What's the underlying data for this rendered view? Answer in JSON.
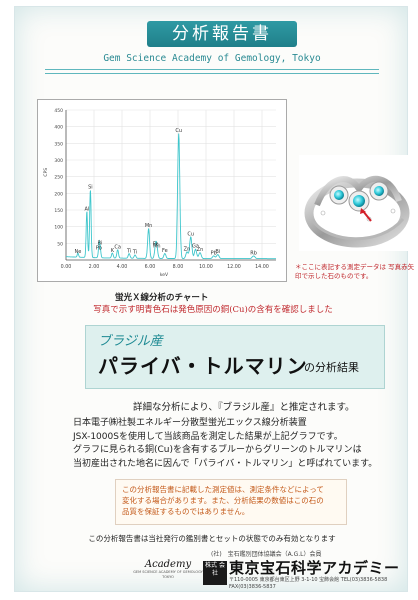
{
  "header": {
    "title": "分析報告書",
    "subtitle": "Gem Science Academy of Gemology, Tokyo"
  },
  "chart_data": {
    "type": "line",
    "title": "",
    "xlabel": "keV",
    "ylabel": "CPS",
    "xlim": [
      0,
      15
    ],
    "ylim": [
      0,
      450
    ],
    "x_ticks": [
      "0.00",
      "2.00",
      "4.00",
      "6.00",
      "8.00",
      "10.00",
      "12.00",
      "14.00"
    ],
    "y_ticks": [
      "50",
      "100",
      "150",
      "200",
      "250",
      "300",
      "350",
      "400",
      "450"
    ],
    "grid": true,
    "line_color": "#3ec6cc",
    "peaks": [
      {
        "label": "Ne",
        "x": 0.85,
        "y": 12
      },
      {
        "label": "Al",
        "x": 1.49,
        "y": 140
      },
      {
        "label": "Si",
        "x": 1.74,
        "y": 205
      },
      {
        "label": "Bi",
        "x": 2.42,
        "y": 38
      },
      {
        "label": "Pb",
        "x": 2.35,
        "y": 22
      },
      {
        "label": "K",
        "x": 3.31,
        "y": 15
      },
      {
        "label": "Ca",
        "x": 3.69,
        "y": 25
      },
      {
        "label": "Ti",
        "x": 4.51,
        "y": 14
      },
      {
        "label": "Ti",
        "x": 4.93,
        "y": 10
      },
      {
        "label": "Mn",
        "x": 5.9,
        "y": 90
      },
      {
        "label": "Fe",
        "x": 6.4,
        "y": 35
      },
      {
        "label": "Mn",
        "x": 6.49,
        "y": 28
      },
      {
        "label": "Fe",
        "x": 7.06,
        "y": 15
      },
      {
        "label": "Cu",
        "x": 8.05,
        "y": 375
      },
      {
        "label": "Cu",
        "x": 8.91,
        "y": 65
      },
      {
        "label": "Zn",
        "x": 8.64,
        "y": 20
      },
      {
        "label": "Zn",
        "x": 9.57,
        "y": 18
      },
      {
        "label": "Ga",
        "x": 9.25,
        "y": 28
      },
      {
        "label": "Bi",
        "x": 10.84,
        "y": 12
      },
      {
        "label": "Pb",
        "x": 10.55,
        "y": 8
      },
      {
        "label": "Rb",
        "x": 13.4,
        "y": 8
      }
    ],
    "peak_labels": [
      "Cu",
      "Si",
      "Al",
      "Mn",
      "Ga",
      "Zn",
      "Bi",
      "Pb",
      "Ne",
      "Ca",
      "K",
      "Ti",
      "Fe",
      "Rb"
    ]
  },
  "chart_caption": "蛍光Ｘ線分析のチャート",
  "photo_note": "＊ここに表記する測定データは 写真赤矢印で示した石のものです。",
  "red_note": "写真で示す明青色石は発色原因の銅(Cu)の含有を確認しました",
  "result": {
    "origin": "ブラジル産",
    "gem_name": "パライバ・トルマリン",
    "suffix": "の分析結果"
  },
  "estimate_text": "詳細な分析により、『ブラジル産』と推定されます。",
  "body_lines": [
    "日本電子㈱社製エネルギー分散型蛍光エックス線分析装置",
    "JSX-1000Sを使用して当該商品を測定した結果が上記グラフです。",
    "グラフに見られる銅(Cu)を含有するブルーからグリーンのトルマリンは",
    "当初産出された地名に因んで「パライバ・トルマリン」と呼ばれています。"
  ],
  "notice_lines": [
    "この分析報告書に記載した測定値は、測定条件などによって",
    "変化する場合があります。また、分析結果の数値はこの石の",
    "品質を保証するものではありません。"
  ],
  "footer_note": "この分析報告書は当社発行の鑑別書とセットの状態でのみ有効となります",
  "academy": {
    "logo_word": "Academy",
    "logo_sub": "GEM SCIENCE ACADEMY OF GEMOLOGY TOKYO"
  },
  "member_text": "(社)　宝石鑑別団体協議会（A.G.L）会員",
  "org_mark": "株式 会社",
  "org_name": "東京宝石科学アカデミー",
  "address": "〒110-0005 東京都台東区上野 3-1-10 宝飾会館 TEL(03)3836-5838 FAX(03)3836-5837",
  "colors": {
    "accent": "#1f7f8a",
    "alert": "#c0282d",
    "result_bg": "#def0ee"
  }
}
